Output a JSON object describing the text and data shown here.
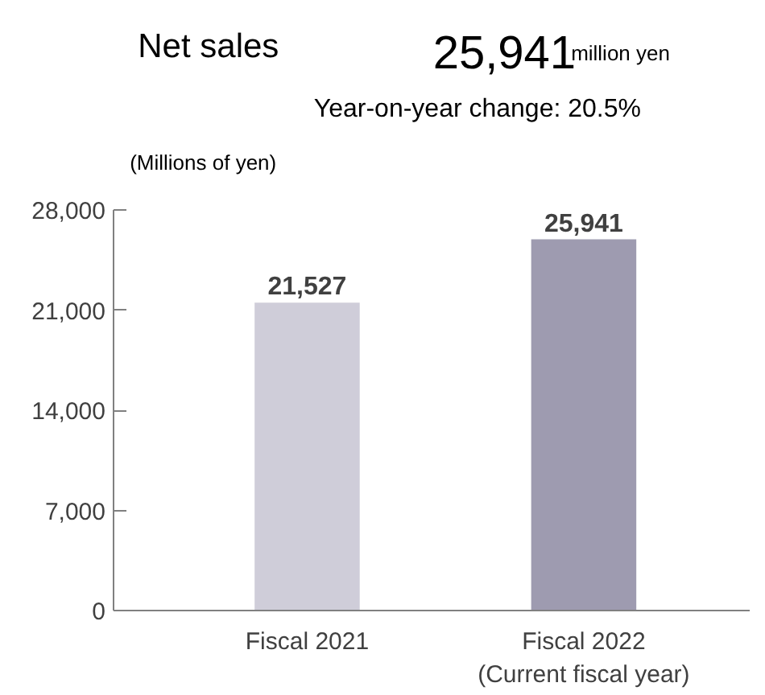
{
  "chart_data": {
    "type": "bar",
    "title": "Net sales",
    "ylabel": "(Millions of yen)",
    "annotations": [
      "25,941",
      "million yen",
      "Year-on-year change: 20.5%"
    ],
    "categories": [
      "Fiscal 2021",
      "Fiscal 2022\n(Current fiscal year)"
    ],
    "values": [
      21527,
      25941
    ],
    "colors": [
      "#cfcdd9",
      "#9e9bb0"
    ],
    "ylim": [
      0,
      28000
    ],
    "yticks": [
      {
        "value": 0,
        "label": "0"
      },
      {
        "value": 7000,
        "label": "7,000"
      },
      {
        "value": 14000,
        "label": "14,000"
      },
      {
        "value": 21000,
        "label": "21,000"
      },
      {
        "value": 28000,
        "label": "28,000"
      }
    ],
    "value_labels": [
      "21,527",
      "25,941"
    ],
    "grid": false
  }
}
